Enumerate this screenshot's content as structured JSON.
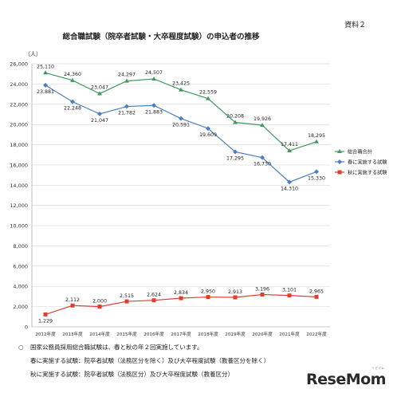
{
  "document_label": "資料２",
  "chart_data": {
    "type": "line",
    "title": "総合職試験（院卒者試験・大卒程度試験）の申込者の推移",
    "ylabel": "（人）",
    "ylim": [
      0,
      26000
    ],
    "yticks": [
      0,
      2000,
      4000,
      6000,
      8000,
      10000,
      12000,
      14000,
      16000,
      18000,
      20000,
      22000,
      24000,
      26000
    ],
    "ytick_labels": [
      "0",
      "2,000",
      "4,000",
      "6,000",
      "8,000",
      "10,000",
      "12,000",
      "14,000",
      "16,000",
      "18,000",
      "20,000",
      "22,000",
      "24,000",
      "26,000"
    ],
    "categories": [
      "2012年度",
      "2013年度",
      "2014年度",
      "2015年度",
      "2016年度",
      "2017年度",
      "2018年度",
      "2019年度",
      "2020年度",
      "2021年度",
      "2022年度"
    ],
    "grid": true,
    "legend_position": "right",
    "series": [
      {
        "name": "総合職合計",
        "color": "#3f9a5a",
        "marker": "triangle",
        "values": [
          25110,
          24360,
          23047,
          24297,
          24507,
          23425,
          22559,
          20208,
          19926,
          17411,
          18295
        ],
        "labels": [
          "25,110",
          "24,360",
          "23,047",
          "24,297",
          "24,507",
          "23,425",
          "22,559",
          "20,208",
          "19,926",
          "17,411",
          "18,295"
        ]
      },
      {
        "name": "春に実施する試験",
        "color": "#4a7fc1",
        "marker": "diamond",
        "values": [
          23881,
          22248,
          21047,
          21782,
          21883,
          20591,
          19609,
          17295,
          16730,
          14310,
          15330
        ],
        "labels": [
          "23,881",
          "22,248",
          "21,047",
          "21,782",
          "21,883",
          "20,591",
          "19,609",
          "17,295",
          "16,730",
          "14,310",
          "15,330"
        ]
      },
      {
        "name": "秋に実施する試験",
        "color": "#d9402e",
        "marker": "square",
        "values": [
          1229,
          2112,
          2000,
          2515,
          2624,
          2834,
          2950,
          2913,
          3196,
          3101,
          2965
        ],
        "labels": [
          "1,229",
          "2,112",
          "2,000",
          "2,515",
          "2,624",
          "2,834",
          "2,950",
          "2,913",
          "3,196",
          "3,101",
          "2,965"
        ]
      }
    ]
  },
  "notes": [
    "国家公務員採用総合職試験は、春と秋の年２回実施しています。",
    "春に実施する試験：院卒者試験（法務区分を除く）及び大卒程度試験（教養区分を除く）",
    "秋に実施する試験：院卒者試験（法務区分）及び大卒程度試験（教養区分）"
  ],
  "brand": {
    "name": "ReseMom",
    "ruby": "リセマム"
  }
}
